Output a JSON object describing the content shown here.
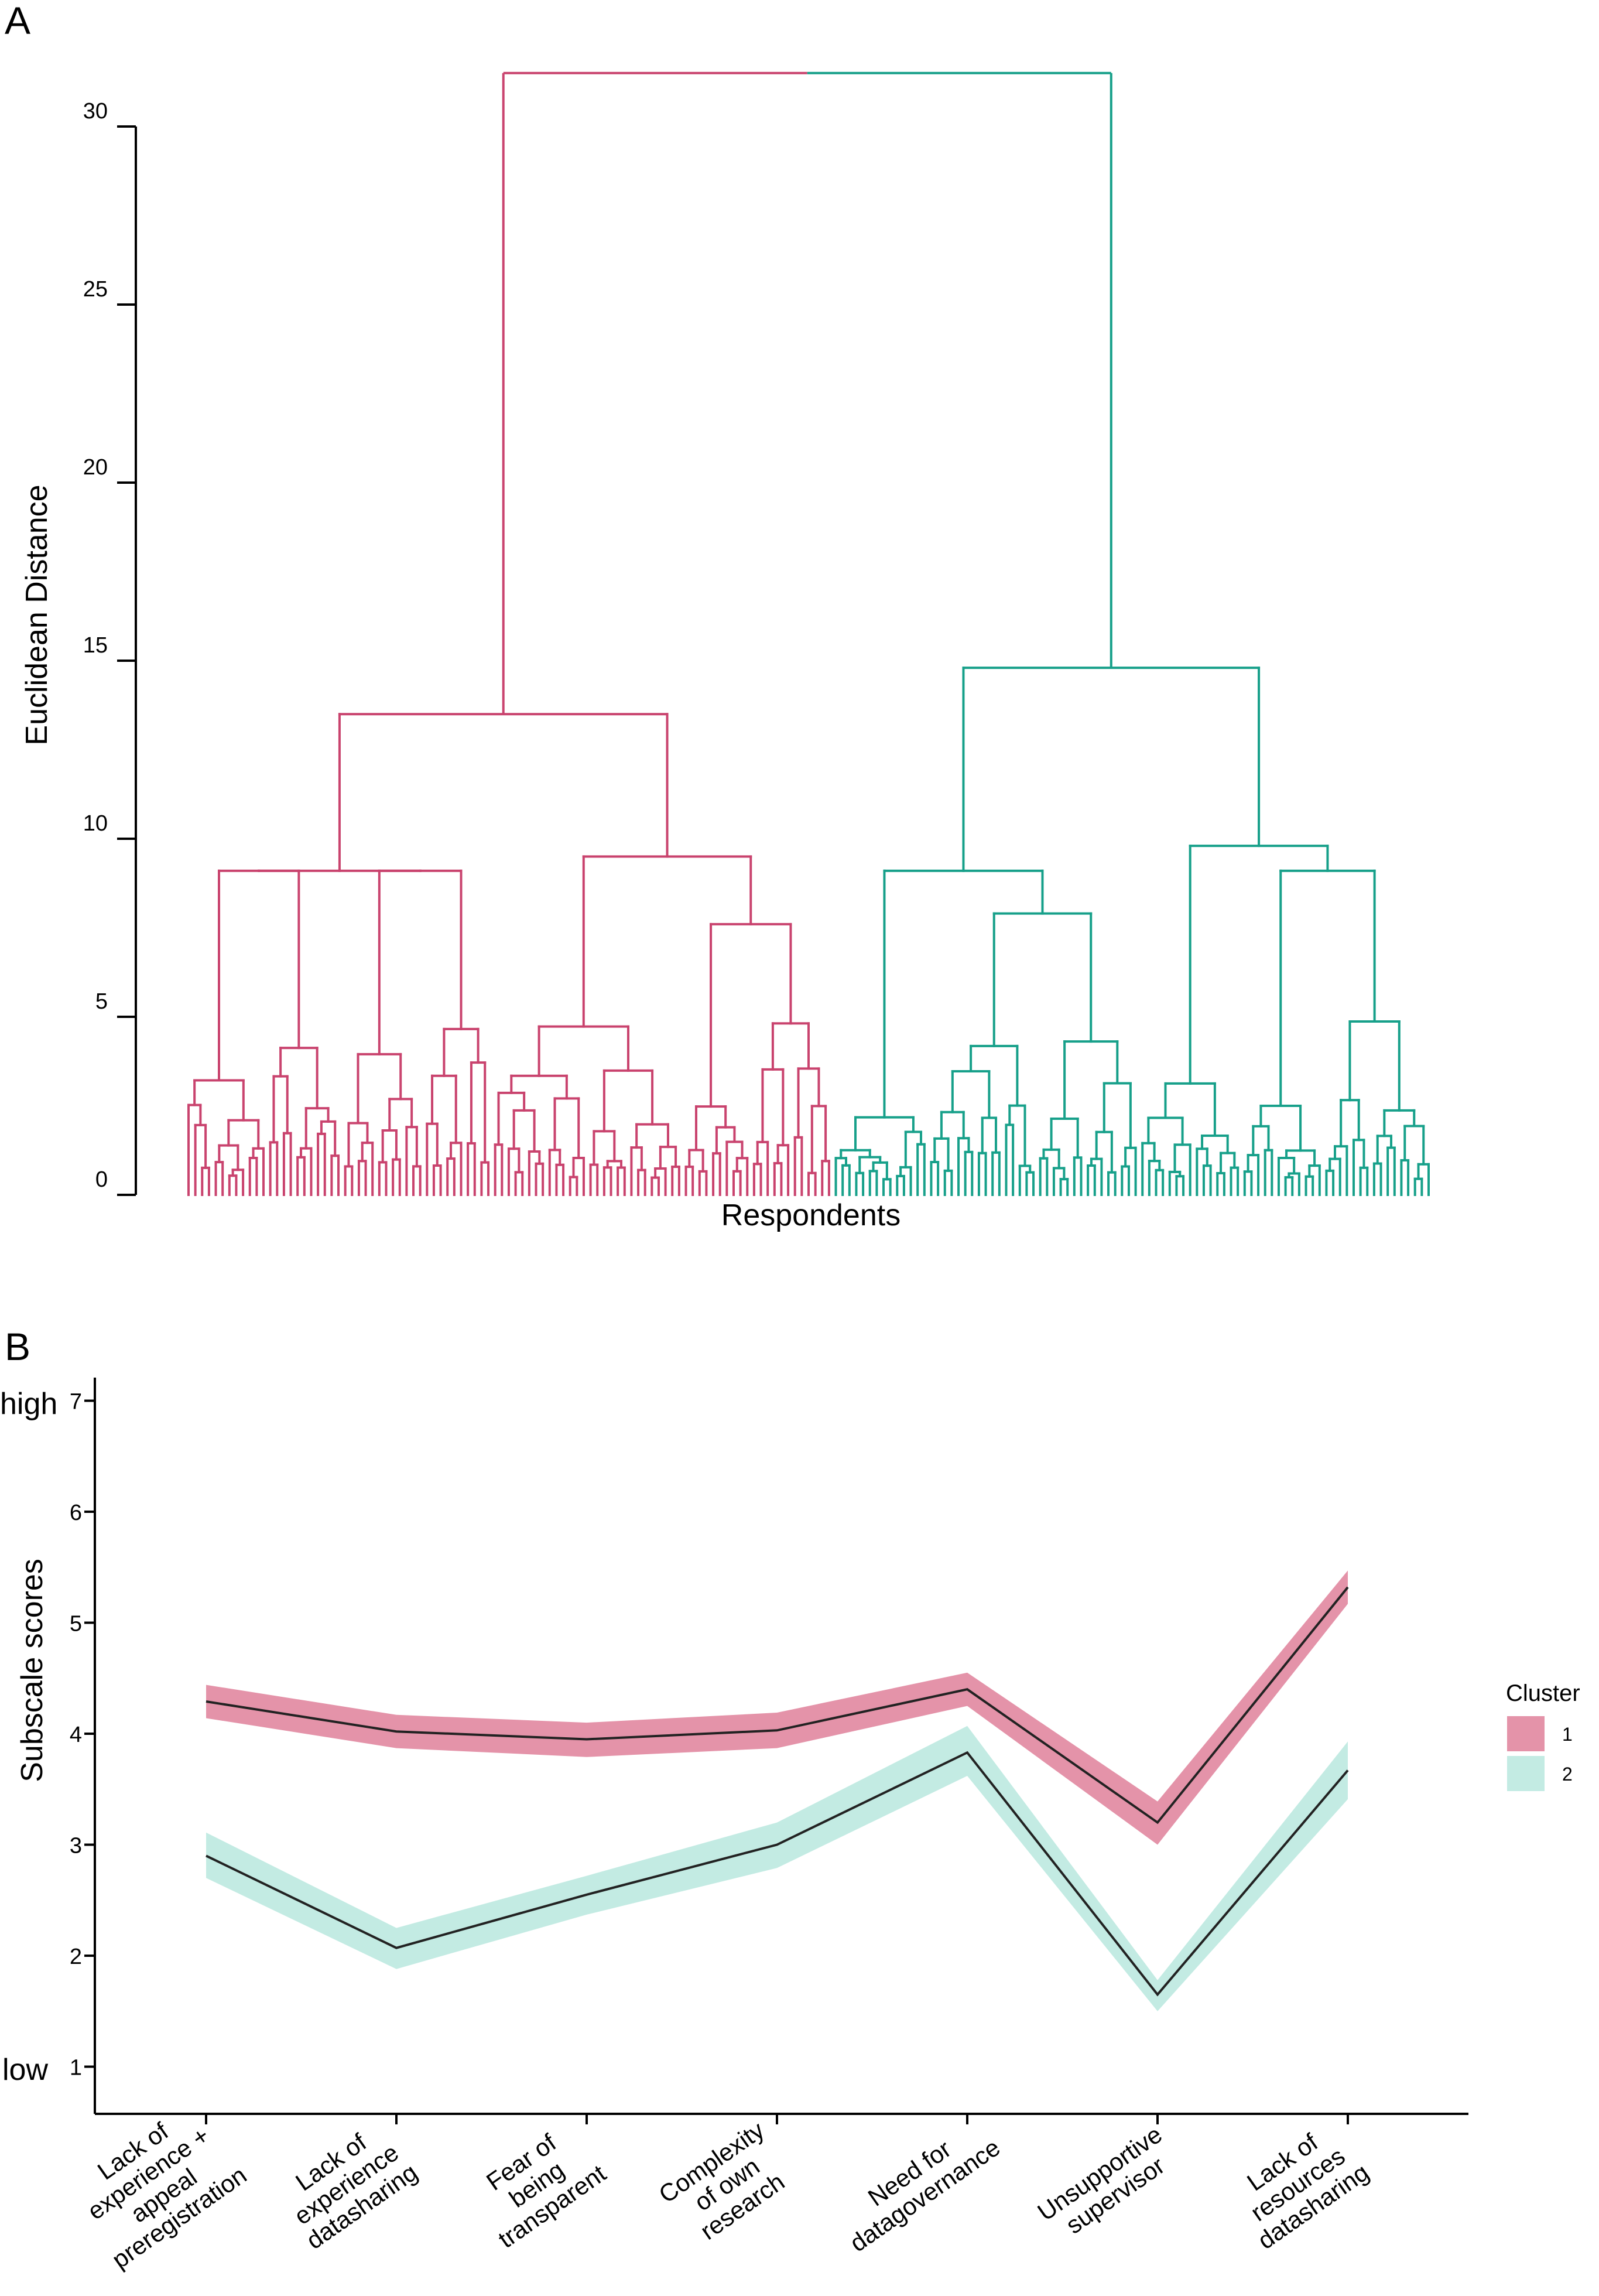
{
  "panel_labels": {
    "a": "A",
    "b": "B"
  },
  "colors": {
    "cluster1": "#c9436e",
    "cluster2": "#17a08a",
    "band1": "#e493a9",
    "band2": "#c3ebe3",
    "mean_line": "#222222"
  },
  "chart_data": [
    {
      "type": "dendrogram",
      "xlabel": "Respondents",
      "ylabel": "Euclidean Distance",
      "ylim": [
        0,
        31
      ],
      "yticks": [
        "0",
        "5",
        "10",
        "15",
        "20",
        "25",
        "30"
      ],
      "leaf_count": {
        "cluster1": 95,
        "cluster2": 88
      },
      "merges": [
        {
          "cluster": "root",
          "height": 31.5
        },
        {
          "cluster": "1",
          "height": 13.5
        },
        {
          "cluster": "2",
          "height": 14.8
        },
        {
          "cluster": "1",
          "height": 9.5
        },
        {
          "cluster": "1",
          "height": 9.1
        },
        {
          "cluster": "2",
          "height": 9.8
        },
        {
          "cluster": "2",
          "height": 9.1
        },
        {
          "cluster": "2",
          "height": 9.1
        },
        {
          "cluster": "2",
          "height": 7.9
        },
        {
          "cluster": "1",
          "height": 7.6
        },
        {
          "cluster": "2",
          "height": 7.0
        },
        {
          "cluster": "1",
          "height": 6.9
        },
        {
          "cluster": "1",
          "height": 6.7
        },
        {
          "cluster": "2",
          "height": 6.4
        },
        {
          "cluster": "2",
          "height": 6.1
        },
        {
          "cluster": "1",
          "height": 5.9
        },
        {
          "cluster": "1",
          "height": 5.9
        }
      ]
    },
    {
      "type": "line",
      "xlabel": "",
      "ylabel": "Subscale scores",
      "ylim": [
        0.5,
        7.3
      ],
      "yticks": [
        "1",
        "2",
        "3",
        "4",
        "5",
        "6",
        "7"
      ],
      "y_text_labels": {
        "high": "high",
        "low": "low"
      },
      "categories": [
        "Lack of experience + appeal preregistration",
        "Lack of experience datasharing",
        "Fear of being transparent",
        "Complexity of own research",
        "Need for datagovernance",
        "Unsupportive supervisor",
        "Lack of resources datasharing"
      ],
      "category_lines": [
        [
          "Lack of",
          "experience +",
          "appeal",
          "preregistration"
        ],
        [
          "Lack of",
          "experience",
          "datasharing"
        ],
        [
          "Fear of",
          "being",
          "transparent"
        ],
        [
          "Complexity",
          "of own",
          "research"
        ],
        [
          "Need for",
          "datagovernance"
        ],
        [
          "Unsupportive",
          "supervisor"
        ],
        [
          "Lack of",
          "resources",
          "datasharing"
        ]
      ],
      "series": [
        {
          "name": "1",
          "values": [
            4.29,
            4.02,
            3.95,
            4.03,
            4.4,
            3.2,
            5.32
          ],
          "lower": [
            4.14,
            3.87,
            3.79,
            3.87,
            4.25,
            3.0,
            5.17
          ],
          "upper": [
            4.44,
            4.17,
            4.1,
            4.19,
            4.55,
            3.39,
            5.47
          ]
        },
        {
          "name": "2",
          "values": [
            2.9,
            2.07,
            2.55,
            3.0,
            3.83,
            1.65,
            3.67
          ],
          "lower": [
            2.7,
            1.88,
            2.37,
            2.79,
            3.62,
            1.5,
            3.41
          ],
          "upper": [
            3.11,
            2.25,
            2.72,
            3.2,
            4.07,
            1.78,
            3.93
          ]
        }
      ],
      "legend": {
        "title": "Cluster",
        "entries": [
          "1",
          "2"
        ],
        "placement": "right"
      }
    }
  ]
}
